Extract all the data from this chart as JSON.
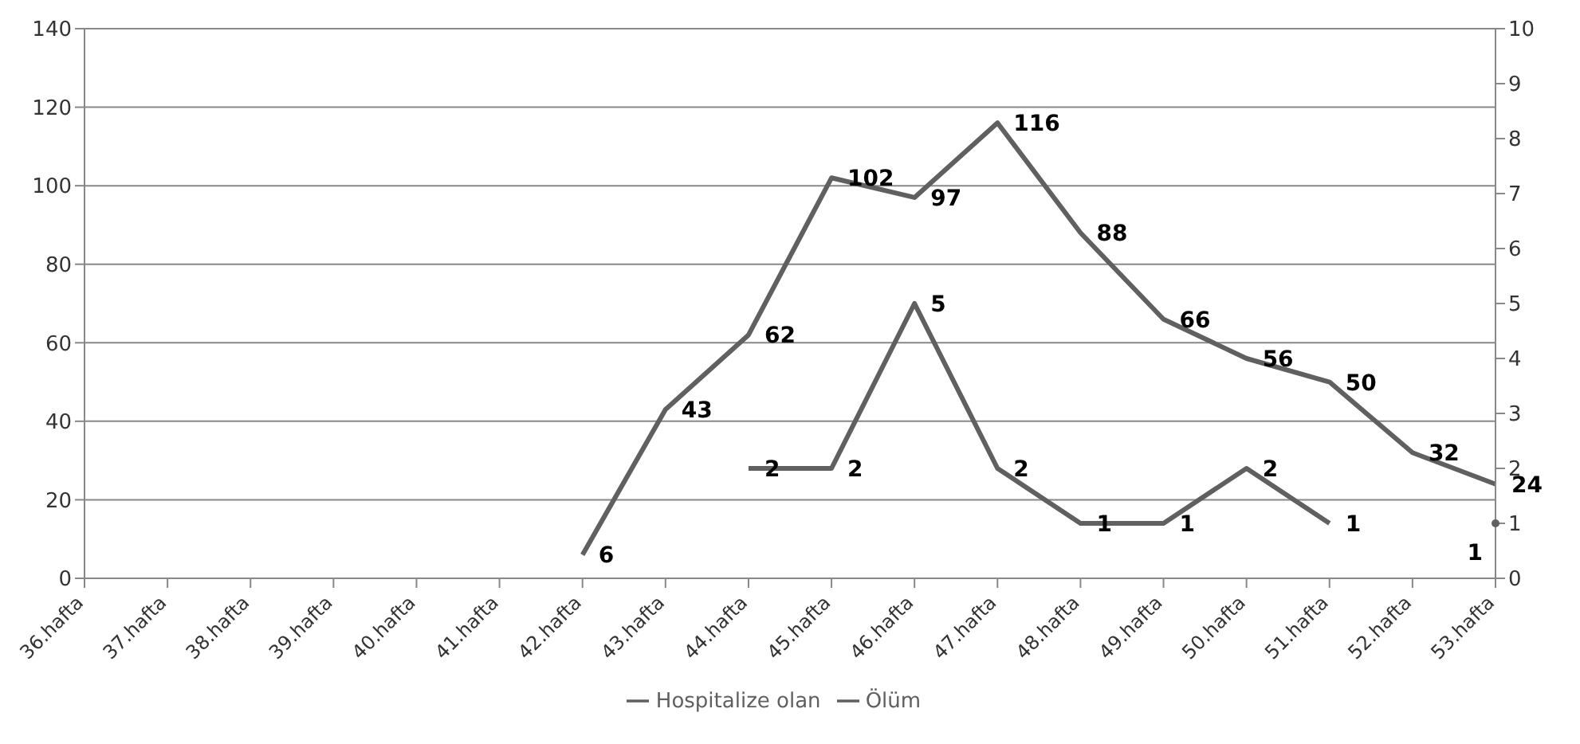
{
  "chart_data": {
    "type": "line",
    "categories": [
      "36.hafta",
      "37.hafta",
      "38.hafta",
      "39.hafta",
      "40.hafta",
      "41.hafta",
      "42.hafta",
      "43.hafta",
      "44.hafta",
      "45.hafta",
      "46.hafta",
      "47.hafta",
      "48.hafta",
      "49.hafta",
      "50.hafta",
      "51.hafta",
      "52.hafta",
      "53.hafta"
    ],
    "series": [
      {
        "name": "Hospitalize olan",
        "color": "#606060",
        "values": [
          null,
          null,
          null,
          null,
          null,
          null,
          6,
          43,
          62,
          102,
          97,
          116,
          88,
          66,
          56,
          50,
          32,
          24
        ]
      },
      {
        "name": "Ölüm",
        "color": "#606060",
        "axis": "y2",
        "values": [
          null,
          null,
          null,
          null,
          null,
          null,
          null,
          null,
          2,
          2,
          5,
          2,
          1,
          1,
          2,
          1,
          null,
          1
        ]
      }
    ],
    "ylim": [
      0,
      140
    ],
    "yticks": [
      0,
      20,
      40,
      60,
      80,
      100,
      120,
      140
    ],
    "y2lim": [
      0,
      10
    ],
    "y2ticks": [
      0,
      1,
      2,
      3,
      4,
      5,
      6,
      7,
      8,
      9,
      10
    ],
    "grid": "y",
    "legend": "bottom",
    "data_labels": true,
    "marker": "none",
    "line_style": "solid"
  }
}
